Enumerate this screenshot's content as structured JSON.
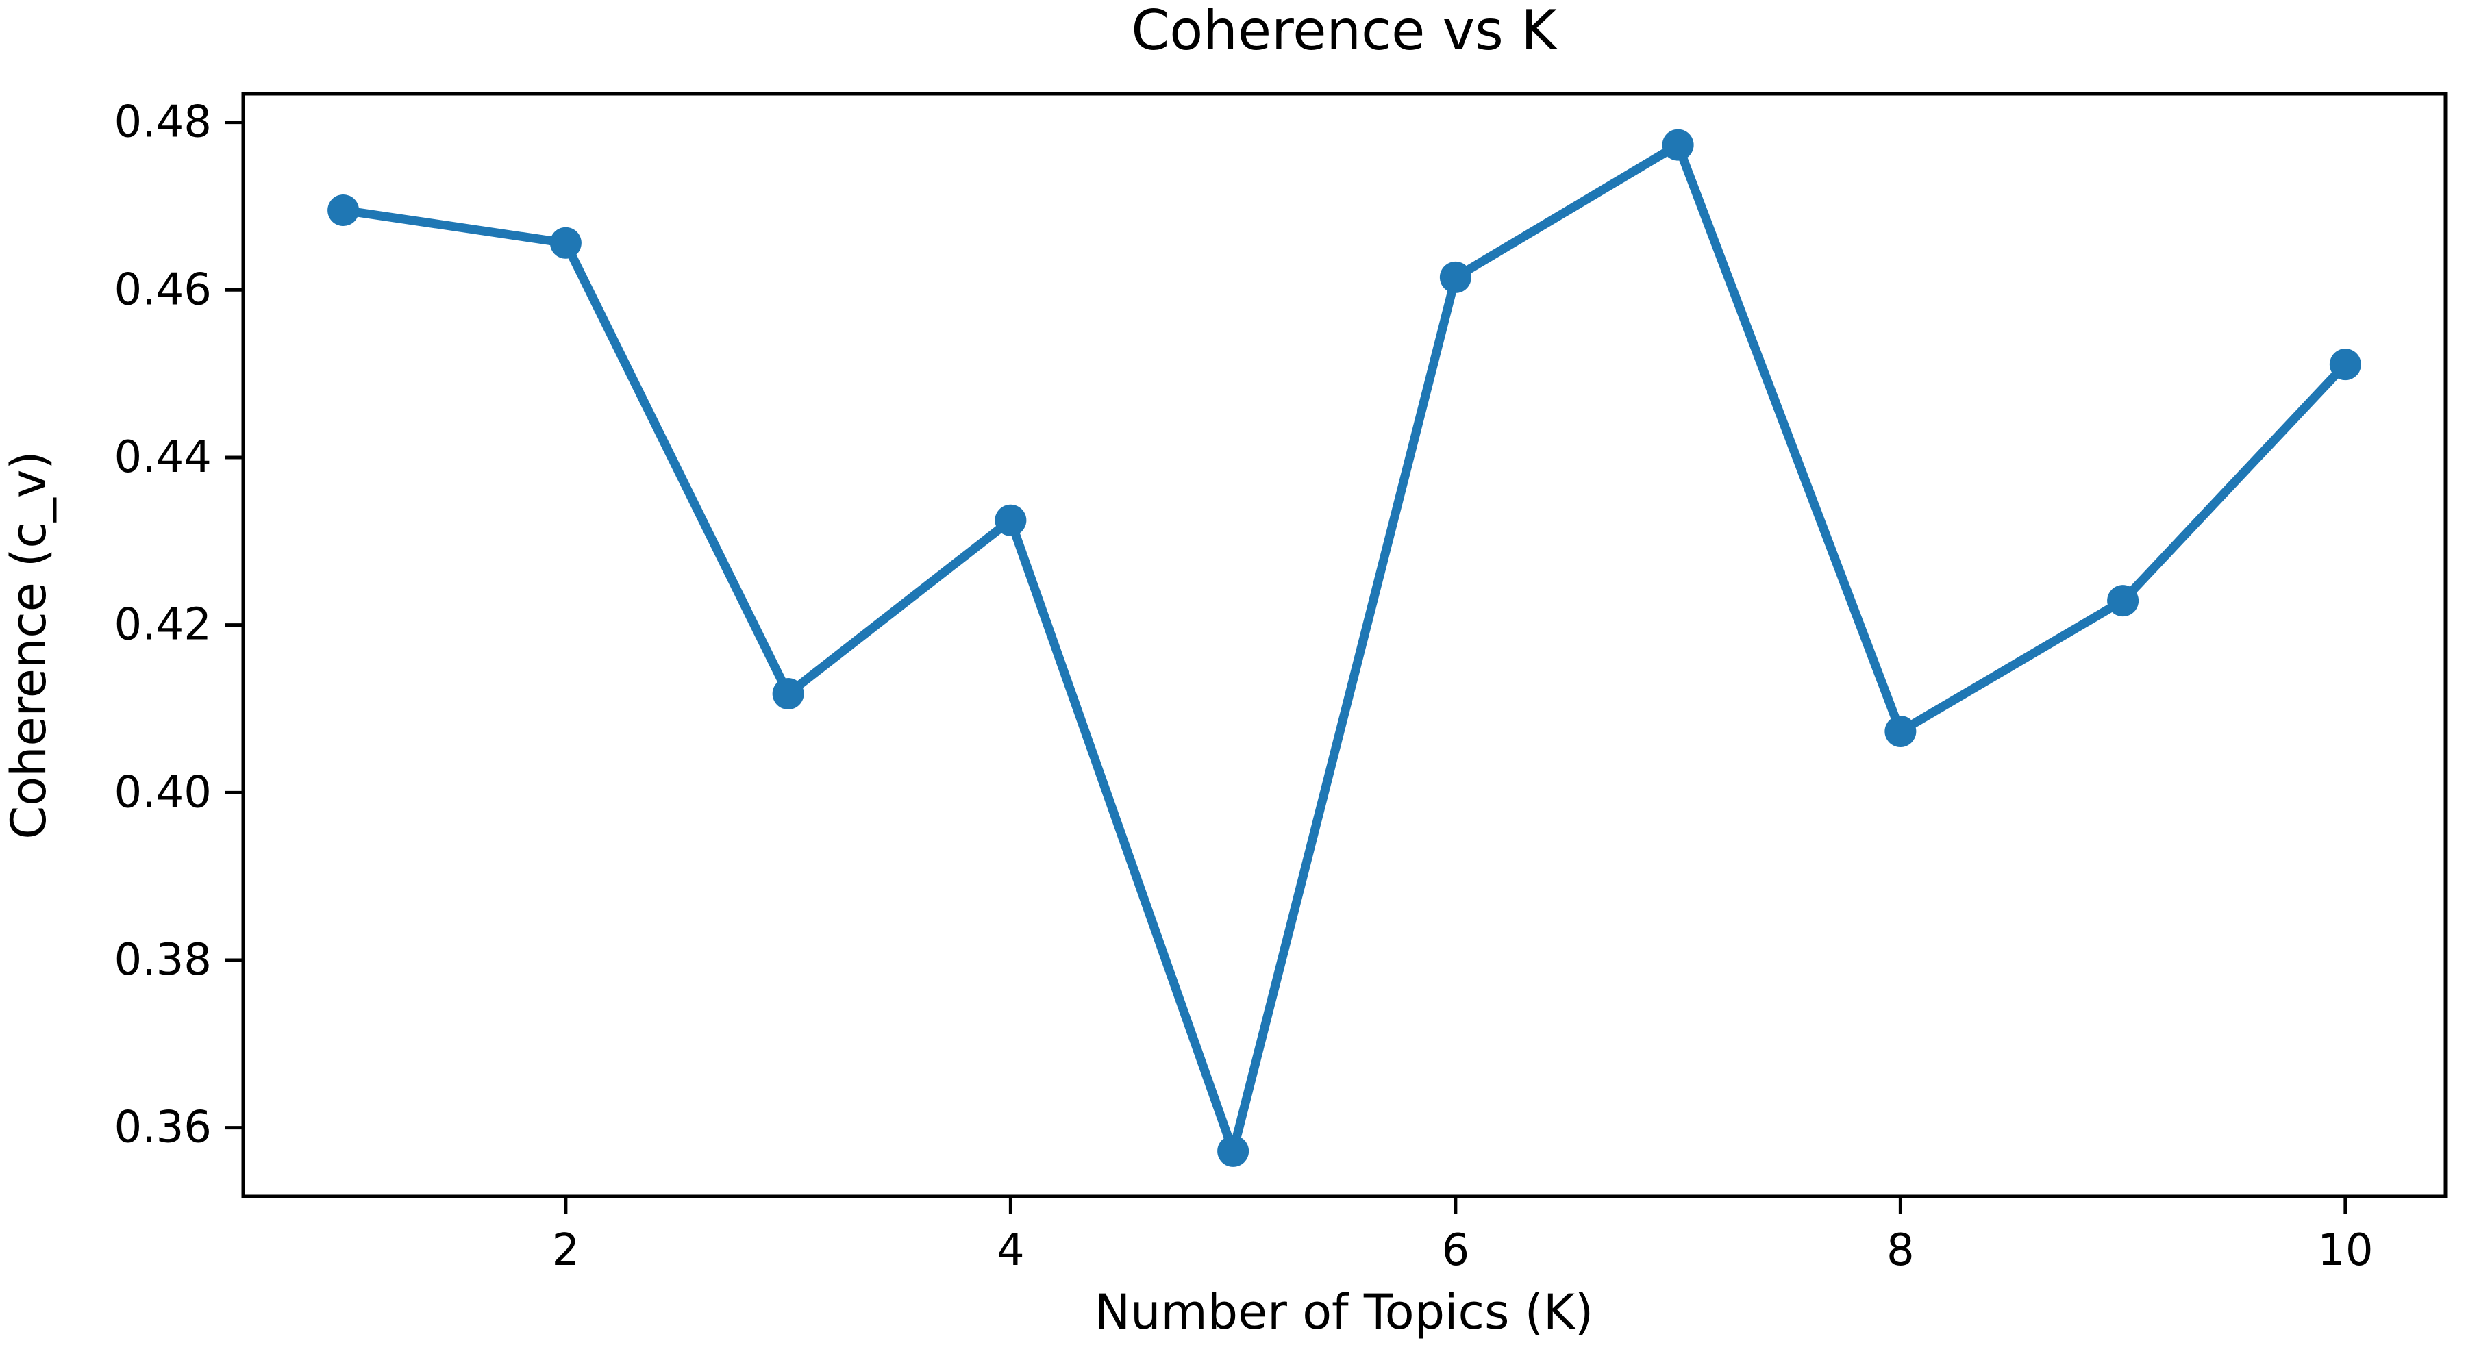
{
  "chart_data": {
    "type": "line",
    "title": "Coherence vs K",
    "xlabel": "Number of Topics (K)",
    "ylabel": "Coherence (c_v)",
    "x": [
      1,
      2,
      3,
      4,
      5,
      6,
      7,
      8,
      9,
      10
    ],
    "series": [
      {
        "name": "coherence_c_v",
        "values": [
          0.4695,
          0.4656,
          0.4118,
          0.4325,
          0.3572,
          0.4615,
          0.4773,
          0.4073,
          0.4229,
          0.4511
        ],
        "color": "#1f77b4",
        "marker": "circle"
      }
    ],
    "x_ticks": [
      "2",
      "4",
      "6",
      "8",
      "10"
    ],
    "y_ticks": [
      "0.36",
      "0.38",
      "0.40",
      "0.42",
      "0.44",
      "0.46",
      "0.48"
    ],
    "xlim": [
      0.55,
      10.45
    ],
    "ylim": [
      0.3518,
      0.4834
    ],
    "grid": false,
    "legend": "none",
    "background_color": "#ffffff",
    "axis_color": "#000000"
  }
}
